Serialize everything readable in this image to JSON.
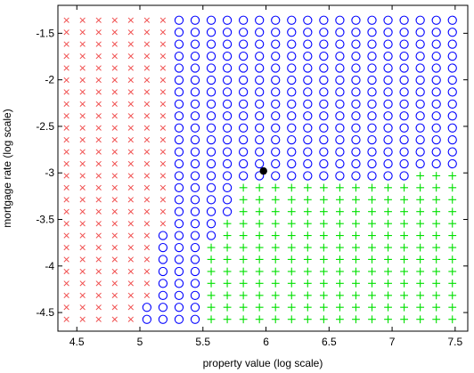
{
  "chart_data": {
    "type": "scatter",
    "title": "",
    "xlabel": "property value (log scale)",
    "ylabel": "mortgage rate (log scale)",
    "xlim": [
      4.35,
      7.6
    ],
    "ylim": [
      -4.7,
      -1.2
    ],
    "x_ticks": [
      4.5,
      5,
      5.5,
      6,
      6.5,
      7,
      7.5
    ],
    "y_ticks": [
      -1.5,
      -2,
      -2.5,
      -3,
      -3.5,
      -4,
      -4.5
    ],
    "x_tick_labels": [
      "4.5",
      "5",
      "5.5",
      "6",
      "6.5",
      "7",
      "7.5"
    ],
    "y_tick_labels": [
      "-1.5",
      "-2",
      "-2.5",
      "-3",
      "-3.5",
      "-4",
      "-4.5"
    ],
    "grid": false,
    "grid_x": {
      "start": 4.418,
      "step": 0.1275,
      "count": 25
    },
    "grid_y": {
      "start": -1.36,
      "step": -0.1285,
      "count": 26
    },
    "region_boundaries": [
      {
        "y": -1.36,
        "circle_from": 5.3,
        "plus_from": null
      },
      {
        "y": -1.489,
        "circle_from": 5.3,
        "plus_from": null
      },
      {
        "y": -1.617,
        "circle_from": 5.3,
        "plus_from": null
      },
      {
        "y": -1.746,
        "circle_from": 5.3,
        "plus_from": null
      },
      {
        "y": -1.874,
        "circle_from": 5.3,
        "plus_from": null
      },
      {
        "y": -2.003,
        "circle_from": 5.3,
        "plus_from": null
      },
      {
        "y": -2.131,
        "circle_from": 5.3,
        "plus_from": null
      },
      {
        "y": -2.26,
        "circle_from": 5.3,
        "plus_from": null
      },
      {
        "y": -2.388,
        "circle_from": 5.3,
        "plus_from": null
      },
      {
        "y": -2.517,
        "circle_from": 5.3,
        "plus_from": null
      },
      {
        "y": -2.645,
        "circle_from": 5.3,
        "plus_from": null
      },
      {
        "y": -2.774,
        "circle_from": 5.3,
        "plus_from": null
      },
      {
        "y": -2.902,
        "circle_from": 5.3,
        "plus_from": null
      },
      {
        "y": -3.031,
        "circle_from": 5.2,
        "plus_from": 7.1
      },
      {
        "y": -3.159,
        "circle_from": 5.2,
        "plus_from": 5.7
      },
      {
        "y": -3.288,
        "circle_from": 5.2,
        "plus_from": 5.7
      },
      {
        "y": -3.416,
        "circle_from": 5.2,
        "plus_from": 5.7
      },
      {
        "y": -3.545,
        "circle_from": 5.2,
        "plus_from": 5.6
      },
      {
        "y": -3.673,
        "circle_from": 5.1,
        "plus_from": 5.6
      },
      {
        "y": -3.802,
        "circle_from": 5.1,
        "plus_from": 5.5
      },
      {
        "y": -3.93,
        "circle_from": 5.1,
        "plus_from": 5.5
      },
      {
        "y": -4.059,
        "circle_from": 5.1,
        "plus_from": 5.5
      },
      {
        "y": -4.187,
        "circle_from": 5.1,
        "plus_from": 5.5
      },
      {
        "y": -4.316,
        "circle_from": 5.1,
        "plus_from": 5.5
      },
      {
        "y": -4.444,
        "circle_from": 5.05,
        "plus_from": 5.5
      },
      {
        "y": -4.573,
        "circle_from": 5.05,
        "plus_from": 5.5
      }
    ],
    "marker_styles": {
      "x": {
        "shape": "x",
        "color": "#f05050"
      },
      "o": {
        "shape": "circle",
        "color": "#0000ff"
      },
      "+": {
        "shape": "plus",
        "color": "#00e000"
      }
    },
    "highlight_point": {
      "x": 5.98,
      "y": -2.98,
      "color": "#000000"
    }
  }
}
